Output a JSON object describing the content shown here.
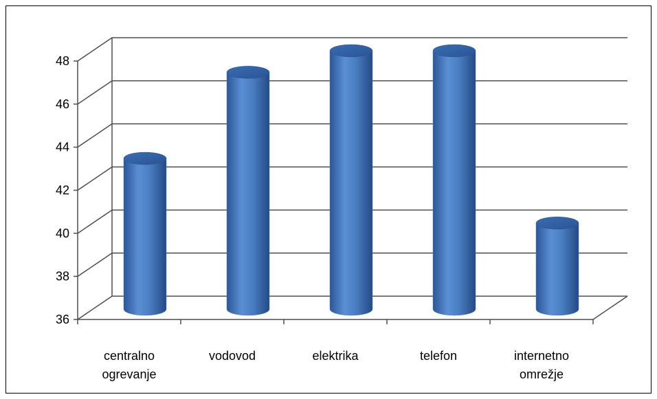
{
  "chart_data": {
    "type": "bar",
    "style": "3d-cylinder",
    "categories": [
      [
        "centralno",
        "ogrevanje"
      ],
      [
        "vodovod"
      ],
      [
        "elektrika"
      ],
      [
        "telefon"
      ],
      [
        "internetno",
        "omrežje"
      ]
    ],
    "series": [
      {
        "values": [
          43,
          47,
          48,
          48,
          40
        ],
        "color": "#4a7ec2"
      }
    ],
    "title": "",
    "xlabel": "",
    "ylabel": "",
    "ylim": [
      36,
      48
    ],
    "yticks": [
      36,
      38,
      40,
      42,
      44,
      46,
      48
    ],
    "grid": true,
    "legend": "none"
  }
}
